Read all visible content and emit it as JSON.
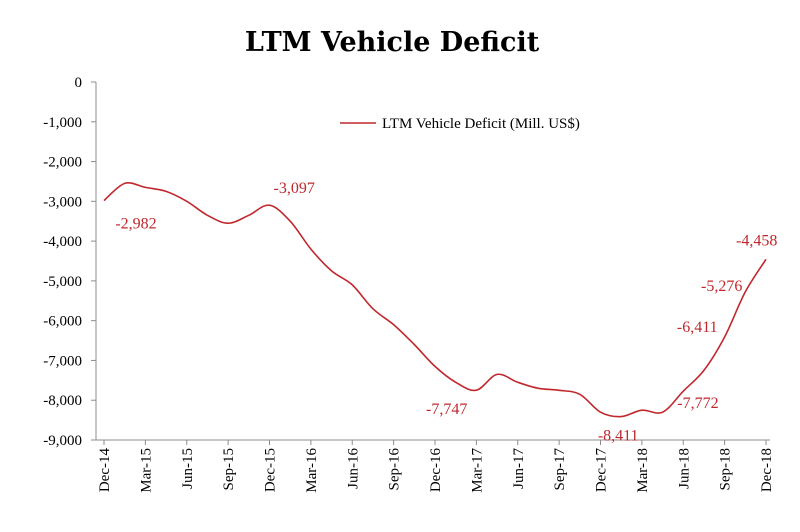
{
  "chart_data": {
    "type": "line",
    "title": "LTM Vehicle Deficit",
    "xlabel": "",
    "ylabel": "",
    "ylim": [
      -9000,
      0
    ],
    "y_ticks": [
      0,
      -1000,
      -2000,
      -3000,
      -4000,
      -5000,
      -6000,
      -7000,
      -8000,
      -9000
    ],
    "y_tick_labels": [
      "0",
      "-1,000",
      "-2,000",
      "-3,000",
      "-4,000",
      "-5,000",
      "-6,000",
      "-7,000",
      "-8,000",
      "-9,000"
    ],
    "x_tick_labels": [
      "Dec-14",
      "Mar-15",
      "Jun-15",
      "Sep-15",
      "Dec-15",
      "Mar-16",
      "Jun-16",
      "Sep-16",
      "Dec-16",
      "Mar-17",
      "Jun-17",
      "Sep-17",
      "Dec-17",
      "Mar-18",
      "Jun-18",
      "Sep-18",
      "Dec-18"
    ],
    "legend": {
      "label": "LTM Vehicle Deficit (Mill. US$)",
      "position": "top-right"
    },
    "grid": false,
    "line_color": "#c0282d",
    "series": [
      {
        "name": "LTM Vehicle Deficit (Mill. US$)",
        "x": [
          0,
          0.5,
          1,
          1.5,
          2,
          2.5,
          3,
          3.5,
          4,
          4.5,
          5,
          5.5,
          6,
          6.5,
          7,
          7.5,
          8,
          8.5,
          9,
          9.5,
          10,
          10.5,
          11,
          11.5,
          12,
          12.5,
          13,
          13.5,
          14,
          14.5,
          15,
          15.5,
          16
        ],
        "values": [
          -2982,
          -2550,
          -2650,
          -2750,
          -3000,
          -3350,
          -3550,
          -3350,
          -3097,
          -3500,
          -4200,
          -4750,
          -5100,
          -5700,
          -6100,
          -6600,
          -7150,
          -7550,
          -7747,
          -7350,
          -7550,
          -7700,
          -7750,
          -7850,
          -8300,
          -8411,
          -8250,
          -8300,
          -7772,
          -7250,
          -6411,
          -5276,
          -4458
        ]
      }
    ],
    "data_labels": [
      {
        "x": 0,
        "value": -2982,
        "text": "-2,982"
      },
      {
        "x": 4,
        "value": -3097,
        "text": "-3,097"
      },
      {
        "x": 9,
        "value": -7747,
        "text": "-7,747"
      },
      {
        "x": 12.5,
        "value": -8411,
        "text": "-8,411"
      },
      {
        "x": 14,
        "value": -7772,
        "text": "-7,772"
      },
      {
        "x": 15,
        "value": -6411,
        "text": "-6,411"
      },
      {
        "x": 15.5,
        "value": -5276,
        "text": "-5,276"
      },
      {
        "x": 16,
        "value": -4458,
        "text": "-4,458"
      }
    ]
  }
}
